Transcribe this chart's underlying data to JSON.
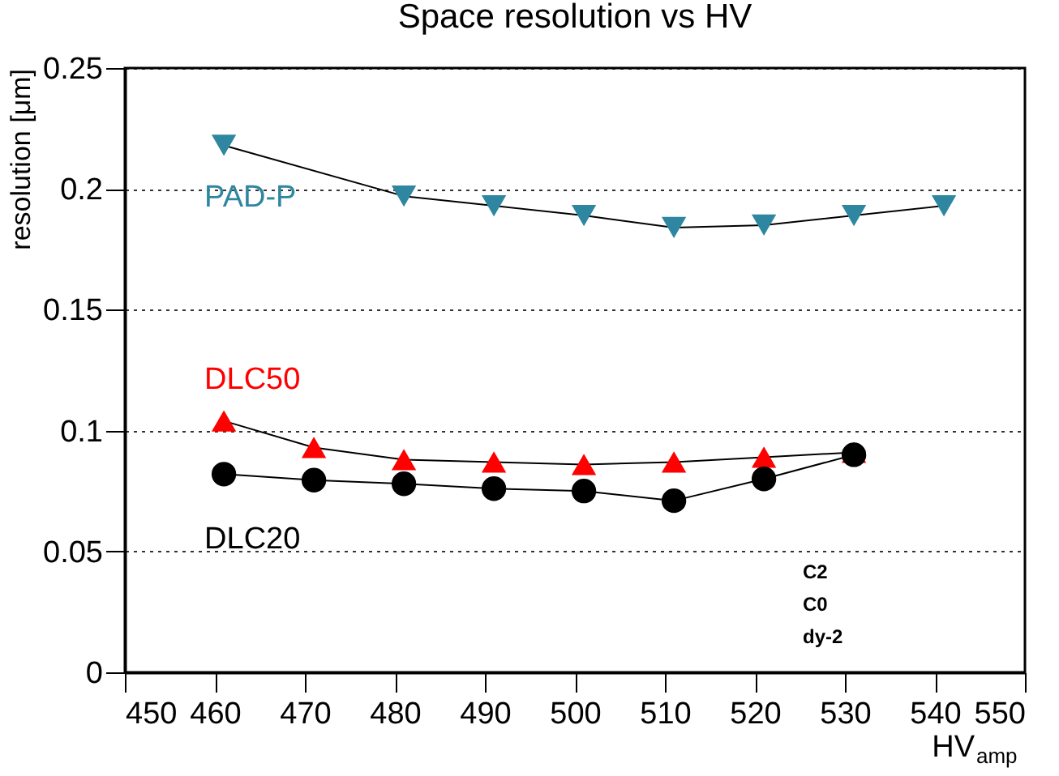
{
  "chart_data": {
    "type": "line",
    "title": "Space resolution vs HV",
    "xlabel": "HV$_{amp}$",
    "ylabel": "resolution [μm]",
    "xlim": [
      450,
      550
    ],
    "xticks": [
      450,
      460,
      470,
      480,
      490,
      500,
      510,
      520,
      530,
      540,
      550
    ],
    "ylim": [
      0,
      0.25
    ],
    "yticks": [
      0,
      0.05,
      0.1,
      0.15,
      0.2,
      0.25
    ],
    "grid": "y",
    "series": [
      {
        "name": "PAD-P",
        "color": "#2e86a0",
        "marker": "triangle-down",
        "x": [
          461,
          481,
          491,
          501,
          511,
          521,
          531,
          541
        ],
        "values": [
          0.218,
          0.197,
          0.193,
          0.189,
          0.184,
          0.185,
          0.189,
          0.193
        ]
      },
      {
        "name": "DLC50",
        "color": "#ff0000",
        "marker": "triangle",
        "x": [
          461,
          471,
          481,
          491,
          501,
          511,
          521,
          531
        ],
        "values": [
          0.104,
          0.093,
          0.088,
          0.087,
          0.086,
          0.087,
          0.089,
          0.091
        ]
      },
      {
        "name": "DLC20",
        "color": "#000000",
        "marker": "circle",
        "x": [
          461,
          471,
          481,
          491,
          501,
          511,
          521,
          531
        ],
        "values": [
          0.082,
          0.0795,
          0.078,
          0.076,
          0.075,
          0.071,
          0.08,
          0.09
        ]
      }
    ],
    "annotations": [
      "C2",
      "C0",
      "dy-2"
    ]
  }
}
